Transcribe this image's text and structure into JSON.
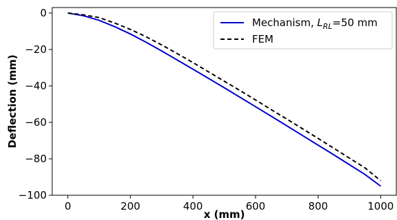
{
  "chart_data": {
    "type": "line",
    "xlabel": "x (mm)",
    "ylabel": "Deflection (mm)",
    "xlim": [
      -50,
      1050
    ],
    "ylim": [
      -100,
      3
    ],
    "xticks": [
      0,
      200,
      400,
      600,
      800,
      1000
    ],
    "yticks": [
      0,
      -20,
      -40,
      -60,
      -80,
      -100
    ],
    "xtick_labels": [
      "0",
      "200",
      "400",
      "600",
      "800",
      "1000"
    ],
    "ytick_labels": [
      "0",
      "−20",
      "−40",
      "−60",
      "−80",
      "−100"
    ],
    "grid": false,
    "legend_position": "top-right",
    "series": [
      {
        "name": "Mechanism, L_RL=50 mm",
        "legend": {
          "prefix": "Mechanism, ",
          "italic": "L",
          "sub": "RL",
          "suffix": "=50 mm"
        },
        "color": "#0000cc",
        "style": "solid",
        "x": [
          0,
          50,
          100,
          150,
          200,
          250,
          300,
          350,
          400,
          450,
          500,
          550,
          600,
          650,
          700,
          750,
          800,
          850,
          900,
          950,
          1000
        ],
        "y": [
          0,
          -1.5,
          -4,
          -7.5,
          -11.5,
          -16,
          -20.8,
          -25.8,
          -30.8,
          -35.9,
          -41,
          -46.2,
          -51.4,
          -56.6,
          -61.9,
          -67.2,
          -72.5,
          -77.8,
          -83.2,
          -88.6,
          -95
        ]
      },
      {
        "name": "FEM",
        "legend": {
          "prefix": "FEM",
          "italic": "",
          "sub": "",
          "suffix": ""
        },
        "color": "#000000",
        "style": "dashed",
        "x": [
          0,
          50,
          100,
          150,
          200,
          250,
          300,
          350,
          400,
          450,
          500,
          550,
          600,
          650,
          700,
          750,
          800,
          850,
          900,
          950,
          1000
        ],
        "y": [
          0,
          -1,
          -2.5,
          -5.5,
          -9,
          -13,
          -17.5,
          -22.3,
          -27.2,
          -32.3,
          -37.4,
          -42.5,
          -47.7,
          -53,
          -58.2,
          -63.5,
          -68.8,
          -74.2,
          -79.6,
          -85,
          -92
        ]
      }
    ]
  }
}
